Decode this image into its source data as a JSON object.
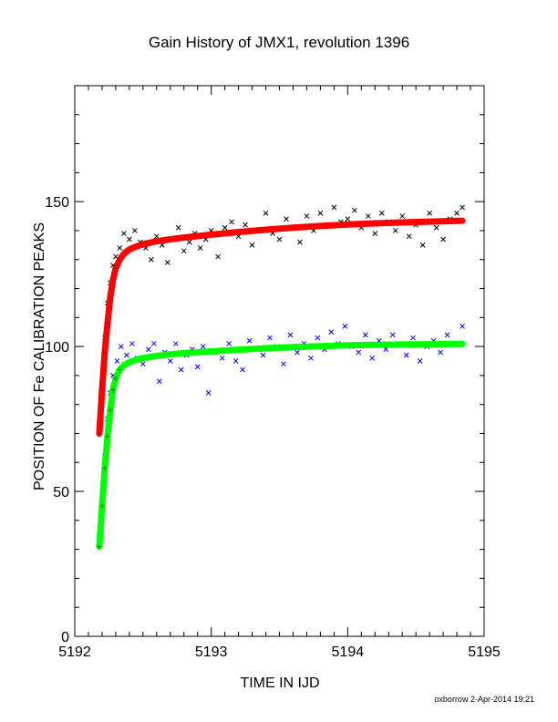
{
  "colors": {
    "axis": "#000000",
    "black_points": "#000000",
    "blue_points": "#0000ff",
    "red_fit": "#ff0000",
    "green_fit": "#00ff00",
    "red_start_marks": "#cc0000",
    "green_start_marks": "#008800"
  },
  "footer": {
    "text": "oxborrow  2-Apr-2014 19:21"
  },
  "chart_data": {
    "type": "scatter",
    "title": "Gain History of JMX1, revolution 1396",
    "xlabel": "TIME IN IJD",
    "ylabel": "POSITION OF Fe CALIBRATION PEAKS",
    "xlim": [
      5192,
      5195
    ],
    "ylim": [
      0,
      190
    ],
    "xticks": [
      5192,
      5193,
      5194,
      5195
    ],
    "xtick_labels": [
      "5192",
      "5193",
      "5194",
      "5195"
    ],
    "yticks": [
      0,
      50,
      100,
      150
    ],
    "ytick_labels": [
      "0",
      "50",
      "100",
      "150"
    ],
    "grid": false,
    "series": [
      {
        "kind": "scatter",
        "marker": "x",
        "color": "#000000",
        "x": [
          5192.22,
          5192.24,
          5192.26,
          5192.28,
          5192.3,
          5192.33,
          5192.36,
          5192.4,
          5192.44,
          5192.48,
          5192.52,
          5192.56,
          5192.6,
          5192.64,
          5192.68,
          5192.72,
          5192.76,
          5192.8,
          5192.84,
          5192.88,
          5192.92,
          5192.96,
          5193.0,
          5193.05,
          5193.1,
          5193.15,
          5193.2,
          5193.25,
          5193.3,
          5193.35,
          5193.4,
          5193.45,
          5193.5,
          5193.55,
          5193.6,
          5193.65,
          5193.7,
          5193.75,
          5193.8,
          5193.85,
          5193.9,
          5193.95,
          5194.0,
          5194.05,
          5194.1,
          5194.15,
          5194.2,
          5194.25,
          5194.3,
          5194.35,
          5194.4,
          5194.45,
          5194.5,
          5194.55,
          5194.6,
          5194.65,
          5194.7,
          5194.75,
          5194.8,
          5194.84
        ],
        "y": [
          103,
          115,
          122,
          128,
          131,
          134,
          139,
          137,
          140,
          136,
          134,
          130,
          138,
          135,
          129,
          137,
          141,
          133,
          136,
          139,
          134,
          137,
          140,
          131,
          141,
          143,
          138,
          142,
          135,
          140,
          146,
          139,
          137,
          144,
          141,
          136,
          145,
          140,
          146,
          142,
          148,
          143,
          144,
          147,
          141,
          145,
          139,
          146,
          143,
          140,
          145,
          138,
          142,
          135,
          146,
          141,
          137,
          144,
          146,
          148
        ]
      },
      {
        "kind": "scatter",
        "marker": "x",
        "color": "#0000ff",
        "x": [
          5192.2,
          5192.22,
          5192.24,
          5192.26,
          5192.28,
          5192.31,
          5192.34,
          5192.38,
          5192.42,
          5192.46,
          5192.5,
          5192.54,
          5192.58,
          5192.62,
          5192.66,
          5192.7,
          5192.74,
          5192.78,
          5192.82,
          5192.86,
          5192.9,
          5192.94,
          5192.98,
          5193.03,
          5193.08,
          5193.13,
          5193.18,
          5193.23,
          5193.28,
          5193.33,
          5193.38,
          5193.43,
          5193.48,
          5193.53,
          5193.58,
          5193.63,
          5193.68,
          5193.73,
          5193.78,
          5193.83,
          5193.88,
          5193.93,
          5193.98,
          5194.03,
          5194.08,
          5194.13,
          5194.18,
          5194.23,
          5194.28,
          5194.33,
          5194.38,
          5194.43,
          5194.48,
          5194.53,
          5194.58,
          5194.63,
          5194.68,
          5194.73,
          5194.78,
          5194.84
        ],
        "y": [
          45,
          62,
          75,
          84,
          90,
          95,
          100,
          97,
          101,
          96,
          94,
          99,
          101,
          88,
          98,
          95,
          101,
          92,
          97,
          99,
          93,
          100,
          84,
          98,
          96,
          101,
          95,
          92,
          102,
          99,
          97,
          103,
          100,
          94,
          104,
          98,
          101,
          96,
          103,
          99,
          105,
          101,
          107,
          100,
          98,
          104,
          96,
          102,
          99,
          104,
          101,
          97,
          103,
          95,
          100,
          102,
          98,
          104,
          101,
          107
        ]
      },
      {
        "kind": "line",
        "color": "#ff0000",
        "x": [
          5192.18,
          5192.2,
          5192.22,
          5192.24,
          5192.26,
          5192.28,
          5192.3,
          5192.33,
          5192.36,
          5192.4,
          5192.45,
          5192.5,
          5192.6,
          5192.7,
          5192.8,
          5192.9,
          5193.0,
          5193.2,
          5193.4,
          5193.6,
          5193.8,
          5194.0,
          5194.2,
          5194.4,
          5194.6,
          5194.84
        ],
        "y": [
          70,
          85,
          98,
          108,
          117,
          123,
          127,
          130,
          132,
          133.5,
          134.5,
          135.3,
          136.3,
          137,
          137.6,
          138.1,
          138.6,
          139.5,
          140.3,
          141,
          141.6,
          142.1,
          142.5,
          142.8,
          143.1,
          143.4
        ]
      },
      {
        "kind": "line",
        "color": "#00ff00",
        "x": [
          5192.18,
          5192.2,
          5192.22,
          5192.24,
          5192.26,
          5192.28,
          5192.3,
          5192.33,
          5192.36,
          5192.4,
          5192.45,
          5192.5,
          5192.6,
          5192.7,
          5192.8,
          5192.9,
          5193.0,
          5193.2,
          5193.4,
          5193.6,
          5193.8,
          5194.0,
          5194.2,
          5194.4,
          5194.6,
          5194.84
        ],
        "y": [
          31,
          45,
          58,
          69,
          78,
          85,
          89,
          92,
          93.5,
          94.6,
          95.4,
          96,
          96.8,
          97.3,
          97.7,
          98,
          98.3,
          98.9,
          99.4,
          99.8,
          100.1,
          100.4,
          100.6,
          100.7,
          100.8,
          100.9
        ]
      }
    ]
  }
}
